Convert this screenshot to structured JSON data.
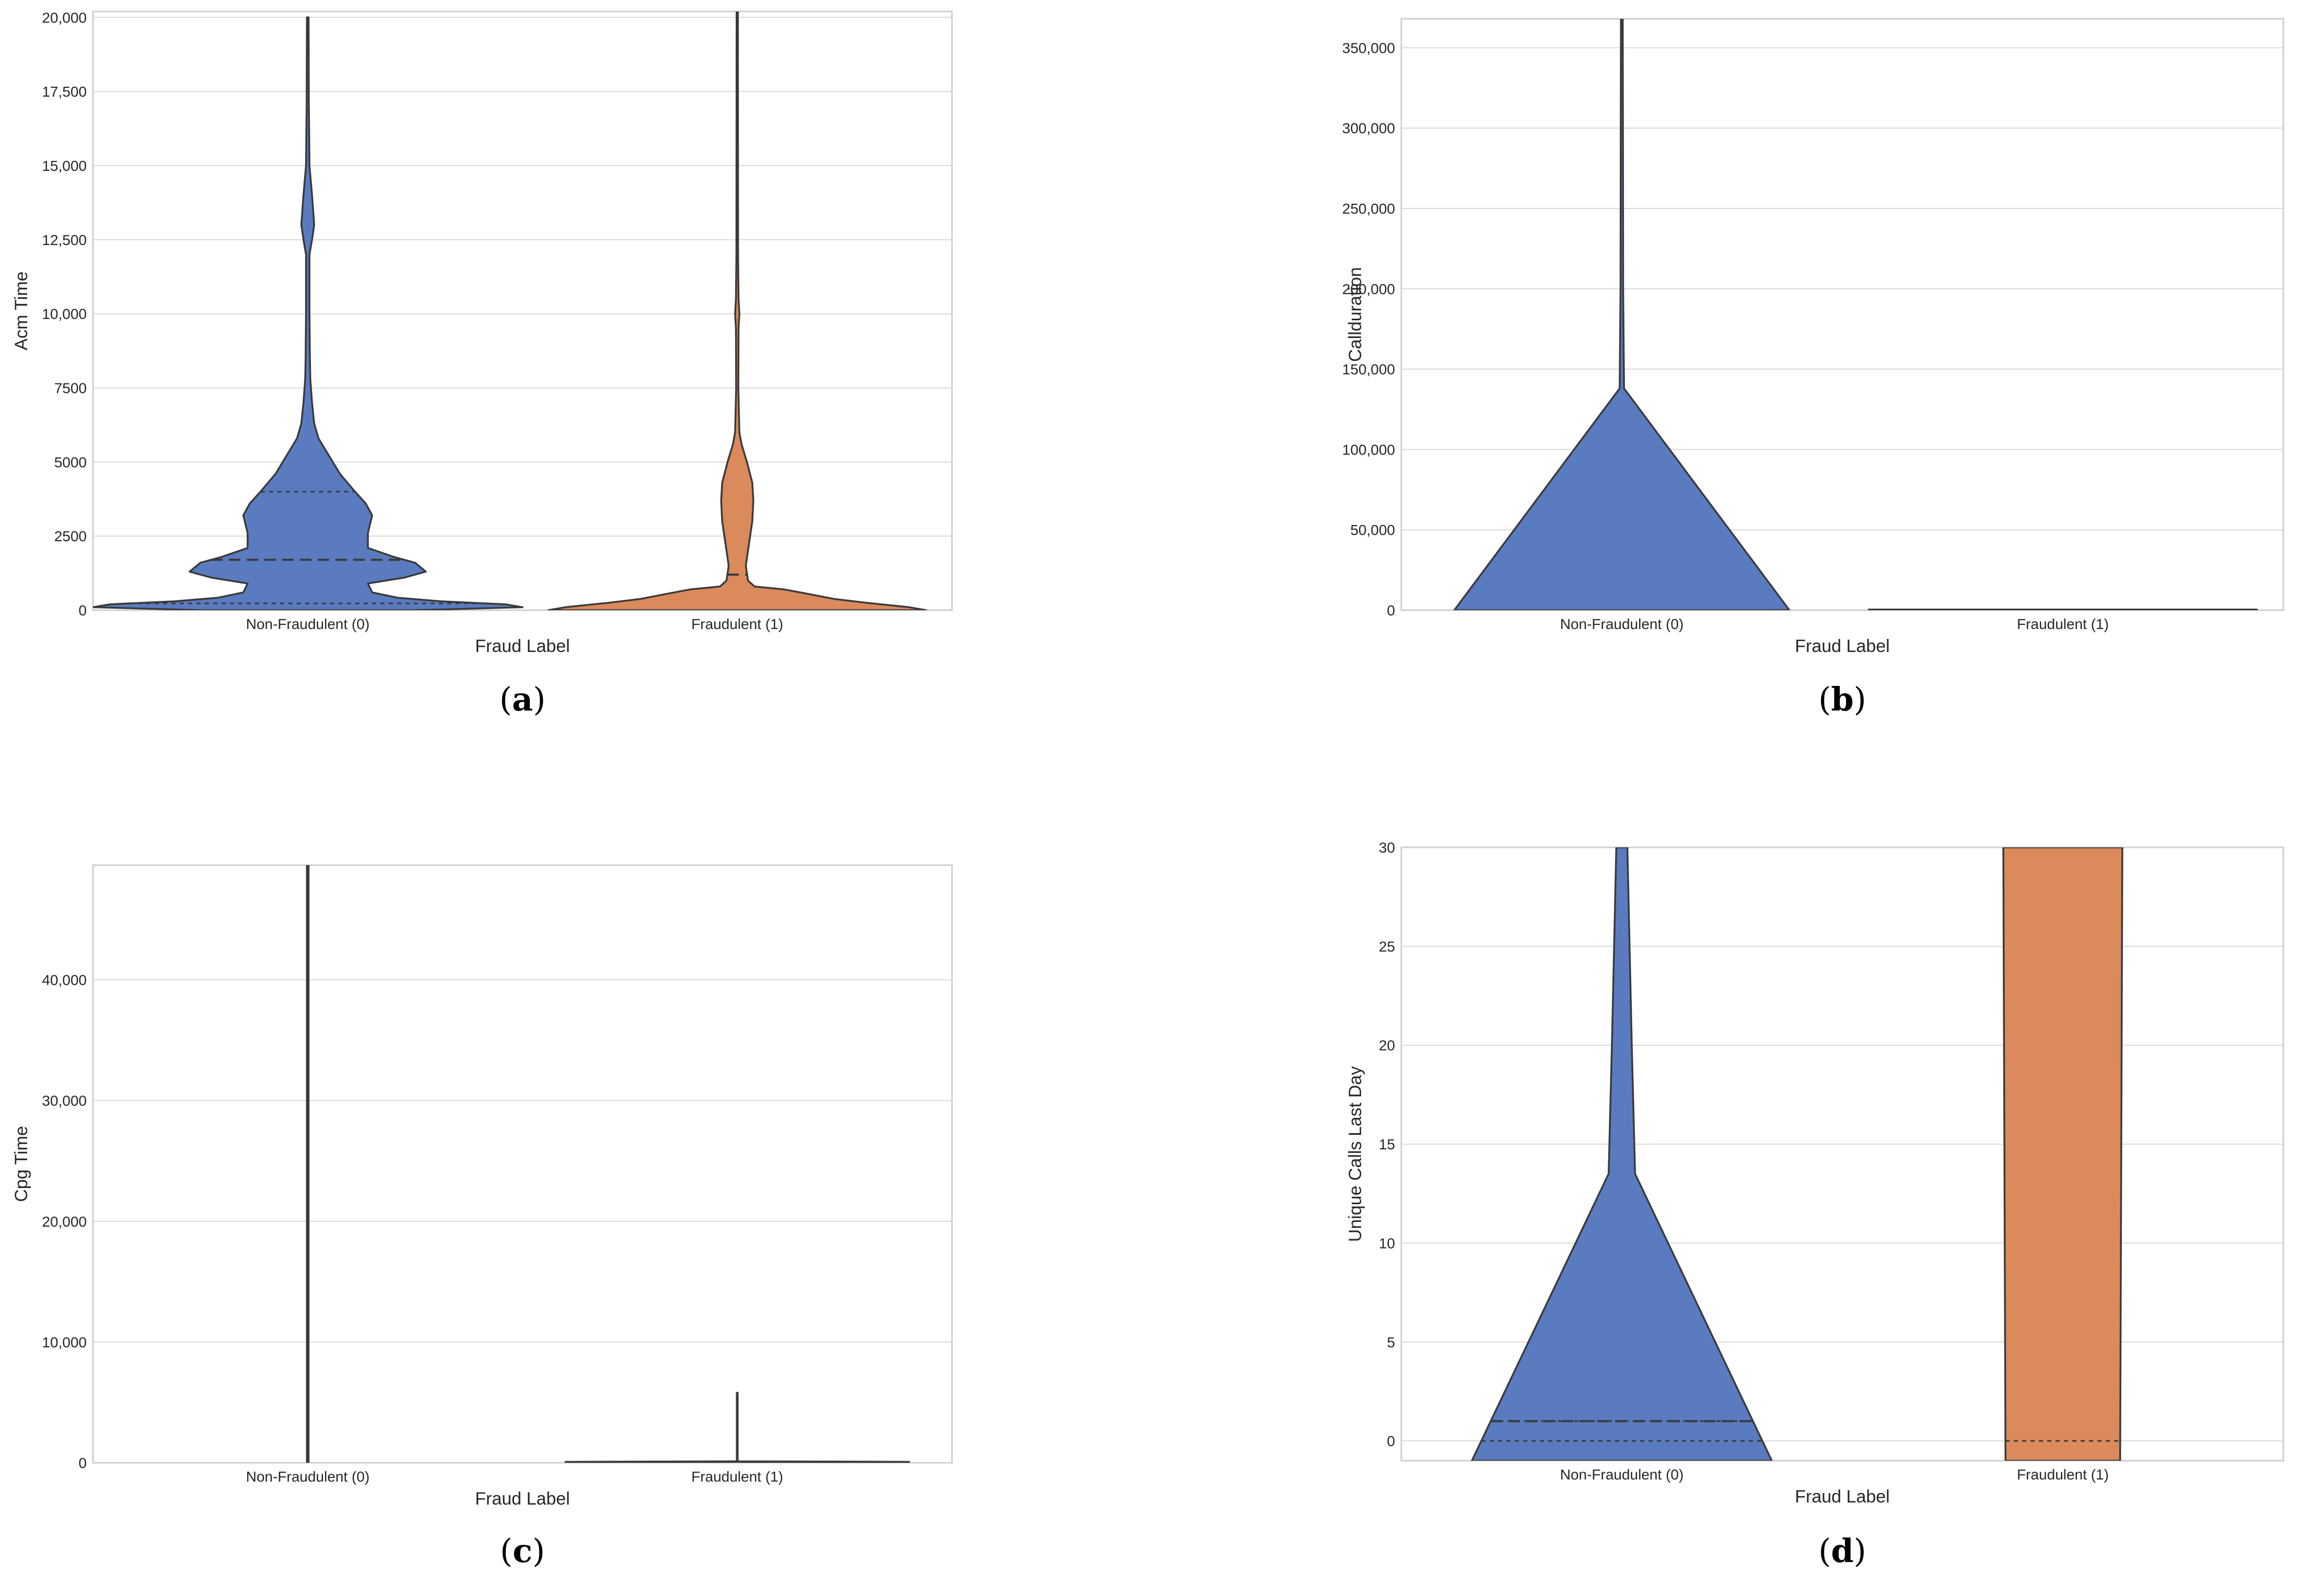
{
  "figure": {
    "colors": {
      "non_fraud": "#5a7bc0",
      "fraud": "#da8a5b",
      "grid": "#d9d9d9",
      "outline": "#3a3a3a"
    }
  },
  "chart_data": [
    {
      "id": "a",
      "caption": "a",
      "type": "violin",
      "xlabel": "Fraud Label",
      "ylabel": "Acm Time",
      "categories": [
        "Non-Fraudulent (0)",
        "Fraudulent (1)"
      ],
      "ylim": [
        0,
        20200
      ],
      "yticks": [
        0,
        2500,
        5000,
        7500,
        10000,
        12500,
        15000,
        17500,
        20000
      ],
      "ytick_labels": [
        "0",
        "2500",
        "5000",
        "7500",
        "10,000",
        "12,500",
        "15,000",
        "17,500",
        "20,000"
      ],
      "grid": true,
      "violins": [
        {
          "category": "Non-Fraudulent (0)",
          "color": "non_fraud",
          "profile": [
            [
              0,
              0.5
            ],
            [
              100,
              1.0
            ],
            [
              200,
              0.92
            ],
            [
              300,
              0.62
            ],
            [
              420,
              0.42
            ],
            [
              600,
              0.3
            ],
            [
              900,
              0.28
            ],
            [
              1100,
              0.45
            ],
            [
              1300,
              0.55
            ],
            [
              1600,
              0.5
            ],
            [
              1800,
              0.4
            ],
            [
              2100,
              0.28
            ],
            [
              2600,
              0.28
            ],
            [
              3200,
              0.3
            ],
            [
              3600,
              0.27
            ],
            [
              4000,
              0.22
            ],
            [
              4600,
              0.15
            ],
            [
              5200,
              0.1
            ],
            [
              5800,
              0.05
            ],
            [
              6300,
              0.03
            ],
            [
              7000,
              0.02
            ],
            [
              7800,
              0.012
            ],
            [
              8500,
              0.01
            ],
            [
              10000,
              0.008
            ],
            [
              12000,
              0.008
            ],
            [
              12500,
              0.02
            ],
            [
              13000,
              0.03
            ],
            [
              13500,
              0.025
            ],
            [
              14000,
              0.02
            ],
            [
              15000,
              0.008
            ],
            [
              16500,
              0.006
            ],
            [
              17000,
              0.005
            ],
            [
              20000,
              0.004
            ]
          ],
          "quartiles": [
            230,
            1700,
            4000
          ]
        },
        {
          "category": "Fraudulent (1)",
          "color": "fraud",
          "profile": [
            [
              0,
              0.88
            ],
            [
              100,
              0.8
            ],
            [
              250,
              0.6
            ],
            [
              380,
              0.45
            ],
            [
              550,
              0.33
            ],
            [
              700,
              0.22
            ],
            [
              800,
              0.08
            ],
            [
              1000,
              0.05
            ],
            [
              1500,
              0.04
            ],
            [
              2000,
              0.05
            ],
            [
              3000,
              0.07
            ],
            [
              3700,
              0.075
            ],
            [
              4300,
              0.07
            ],
            [
              5000,
              0.045
            ],
            [
              5600,
              0.02
            ],
            [
              6000,
              0.01
            ],
            [
              7500,
              0.005
            ],
            [
              9500,
              0.006
            ],
            [
              10000,
              0.01
            ],
            [
              10500,
              0.006
            ],
            [
              12000,
              0.004
            ],
            [
              20200,
              0.003
            ]
          ],
          "quartiles": [
            1200
          ]
        }
      ]
    },
    {
      "id": "b",
      "caption": "b",
      "type": "violin",
      "xlabel": "Fraud Label",
      "ylabel": "Callduration",
      "categories": [
        "Non-Fraudulent (0)",
        "Fraudulent (1)"
      ],
      "ylim": [
        0,
        368000
      ],
      "yticks": [
        0,
        50000,
        100000,
        150000,
        200000,
        250000,
        300000,
        350000
      ],
      "ytick_labels": [
        "0",
        "50,000",
        "100,000",
        "150,000",
        "200,000",
        "250,000",
        "300,000",
        "350,000"
      ],
      "grid": true,
      "violins": [
        {
          "category": "Non-Fraudulent (0)",
          "color": "non_fraud",
          "profile": [
            [
              0,
              0.76
            ],
            [
              138000,
              0.01
            ],
            [
              200000,
              0.006
            ],
            [
              300000,
              0.005
            ],
            [
              368000,
              0.004
            ]
          ],
          "quartiles": []
        },
        {
          "category": "Fraudulent (1)",
          "color": "fraud",
          "profile": [
            [
              0,
              0.88
            ],
            [
              400,
              0.88
            ]
          ],
          "quartiles": []
        }
      ]
    },
    {
      "id": "c",
      "caption": "c",
      "type": "violin",
      "xlabel": "Fraud Label",
      "ylabel": "Cpg Time",
      "categories": [
        "Non-Fraudulent (0)",
        "Fraudulent (1)"
      ],
      "ylim": [
        0,
        49500
      ],
      "yticks": [
        0,
        10000,
        20000,
        30000,
        40000
      ],
      "ytick_labels": [
        "0",
        "10,000",
        "20,000",
        "30,000",
        "40,000"
      ],
      "grid": true,
      "violins": [
        {
          "category": "Non-Fraudulent (0)",
          "color": "non_fraud",
          "profile": [
            [
              0,
              0.004
            ],
            [
              49500,
              0.004
            ]
          ],
          "quartiles": []
        },
        {
          "category": "Fraudulent (1)",
          "color": "fraud",
          "profile": [
            [
              0,
              0.8
            ],
            [
              80,
              0.8
            ],
            [
              120,
              0.002
            ],
            [
              5800,
              0.002
            ]
          ],
          "quartiles": []
        }
      ]
    },
    {
      "id": "d",
      "caption": "d",
      "type": "violin",
      "xlabel": "Fraud Label",
      "ylabel": "Unique Calls Last Day",
      "categories": [
        "Non-Fraudulent (0)",
        "Fraudulent (1)"
      ],
      "ylim": [
        -1,
        30
      ],
      "yticks": [
        0,
        5,
        10,
        15,
        20,
        25,
        30
      ],
      "ytick_labels": [
        "0",
        "5",
        "10",
        "15",
        "20",
        "25",
        "30"
      ],
      "grid": true,
      "violins": [
        {
          "category": "Non-Fraudulent (0)",
          "color": "non_fraud",
          "profile": [
            [
              -1,
              0.68
            ],
            [
              13.5,
              0.06
            ],
            [
              20,
              0.045
            ],
            [
              25,
              0.035
            ],
            [
              30,
              0.025
            ]
          ],
          "quartiles": [
            0,
            1,
            1
          ]
        },
        {
          "category": "Fraudulent (1)",
          "color": "fraud",
          "profile": [
            [
              -1,
              0.26
            ],
            [
              30,
              0.27
            ]
          ],
          "quartiles": [
            0
          ]
        }
      ]
    }
  ]
}
